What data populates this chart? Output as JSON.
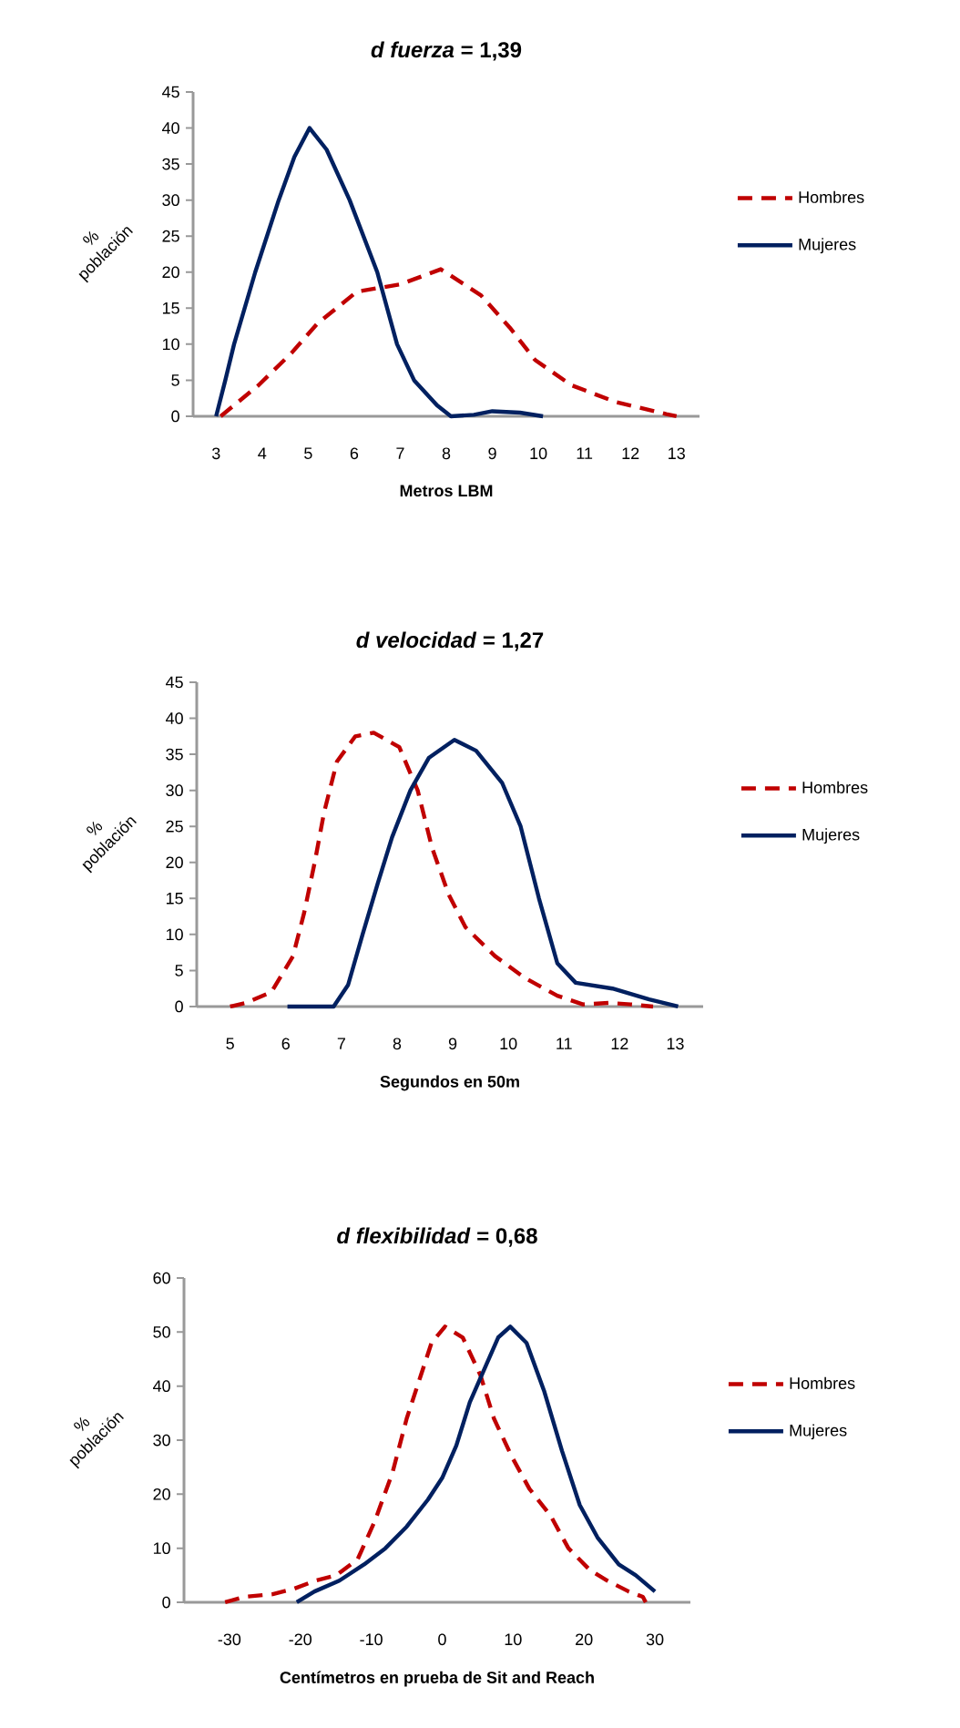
{
  "chart_data": [
    {
      "type": "line",
      "title": "*d fuerza* = 1,39",
      "xlabel": "Metros LBM",
      "ylabel": "% población",
      "xlim": [
        2.5,
        13.5
      ],
      "ylim": [
        0,
        45
      ],
      "xticks": [
        3,
        4,
        5,
        6,
        7,
        8,
        9,
        10,
        11,
        12,
        13
      ],
      "yticks": [
        0,
        5,
        10,
        15,
        20,
        25,
        30,
        35,
        40,
        45
      ],
      "legend": "right",
      "series": [
        {
          "name": "Hombres",
          "color": "#c00000",
          "line_style": "dashed",
          "x": [
            3.1,
            3.92,
            4.64,
            5.19,
            6.06,
            7,
            7.88,
            8.75,
            9.38,
            9.93,
            10.72,
            11.67,
            12.78,
            13
          ],
          "values": [
            0,
            4.3,
            8.8,
            12.8,
            17.3,
            18.3,
            20.4,
            16.8,
            12.3,
            7.8,
            4.3,
            2,
            0.3,
            0
          ]
        },
        {
          "name": "Mujeres",
          "color": "#002060",
          "line_style": "solid",
          "x": [
            3,
            3.2,
            3.39,
            3.85,
            4.36,
            4.7,
            5.03,
            5.4,
            5.9,
            6.5,
            6.93,
            7.3,
            7.8,
            8.1,
            8.6,
            9,
            9.6,
            10.1
          ],
          "values": [
            0,
            5,
            10,
            20,
            30,
            36,
            40,
            37,
            30,
            20,
            10,
            5,
            1.5,
            0,
            0.2,
            0.7,
            0.5,
            0
          ]
        }
      ]
    },
    {
      "type": "line",
      "title": "*d velocidad* = 1,27",
      "xlabel": "Segundos en 50m",
      "ylabel": "% población",
      "xlim": [
        4.4,
        13.5
      ],
      "ylim": [
        0,
        45
      ],
      "xticks": [
        5,
        6,
        7,
        8,
        9,
        10,
        11,
        12,
        13
      ],
      "yticks": [
        0,
        5,
        10,
        15,
        20,
        25,
        30,
        35,
        40,
        45
      ],
      "legend": "right",
      "series": [
        {
          "name": "Hombres",
          "color": "#c00000",
          "line_style": "dashed",
          "x": [
            5,
            5.28,
            5.74,
            6.13,
            6.33,
            6.52,
            6.69,
            6.92,
            7.25,
            7.58,
            8.04,
            8.37,
            8.63,
            8.93,
            9.23,
            9.76,
            10.29,
            10.88,
            11.34,
            11.8,
            12.2,
            12.6
          ],
          "values": [
            0,
            0.5,
            2,
            7,
            13,
            20,
            27,
            34,
            37.5,
            38,
            36,
            30,
            22,
            15.5,
            11,
            7,
            4,
            1.5,
            0.3,
            0.5,
            0.3,
            0
          ]
        },
        {
          "name": "Mujeres",
          "color": "#002060",
          "line_style": "solid",
          "x": [
            6.03,
            6.86,
            7.12,
            7.38,
            7.65,
            7.91,
            8.24,
            8.57,
            9.03,
            9.42,
            9.89,
            10.22,
            10.55,
            10.88,
            11.21,
            11.87,
            12.53,
            13.05
          ],
          "values": [
            0,
            0,
            3,
            10,
            17,
            23.5,
            30,
            34.5,
            37,
            35.5,
            31,
            25,
            15,
            6,
            3.3,
            2.5,
            1,
            0
          ]
        }
      ]
    },
    {
      "type": "line",
      "title": "*d flexibilidad* = 0,68",
      "xlabel": "Centímetros en prueba de Sit and Reach",
      "ylabel": "% población",
      "xlim": [
        -36.4,
        35
      ],
      "ylim": [
        0,
        60
      ],
      "xticks": [
        -30,
        -20,
        -10,
        0,
        10,
        20,
        30
      ],
      "yticks": [
        0,
        10,
        20,
        30,
        40,
        50,
        60
      ],
      "legend": "right",
      "series": [
        {
          "name": "Hombres",
          "color": "#c00000",
          "line_style": "dashed",
          "x": [
            -30.6,
            -27.9,
            -23.9,
            -20.9,
            -17.9,
            -14.9,
            -11.9,
            -9.5,
            -7,
            -5,
            -3,
            -1.5,
            0.4,
            2.9,
            5.4,
            7.3,
            9.8,
            12.3,
            15.3,
            17.8,
            20.8,
            23.3,
            26.3,
            28.3,
            28.7
          ],
          "values": [
            0,
            1,
            1.5,
            2.5,
            4,
            5,
            8,
            15,
            24,
            34,
            42,
            48,
            51,
            49,
            42,
            34,
            27,
            21,
            16,
            10,
            6,
            4,
            2,
            1,
            0
          ]
        },
        {
          "name": "Mujeres",
          "color": "#002060",
          "line_style": "solid",
          "x": [
            -20.5,
            -18,
            -14.5,
            -11,
            -8,
            -5,
            -2,
            0,
            2,
            3.9,
            5.9,
            7.9,
            9.6,
            11.9,
            14.4,
            16.9,
            19.4,
            21.9,
            24.9,
            27.3,
            30
          ],
          "values": [
            0,
            2,
            4,
            7,
            10,
            14,
            19,
            23,
            29,
            37,
            43,
            49,
            51,
            48,
            39,
            28,
            18,
            12,
            7,
            5,
            2
          ]
        }
      ]
    }
  ]
}
